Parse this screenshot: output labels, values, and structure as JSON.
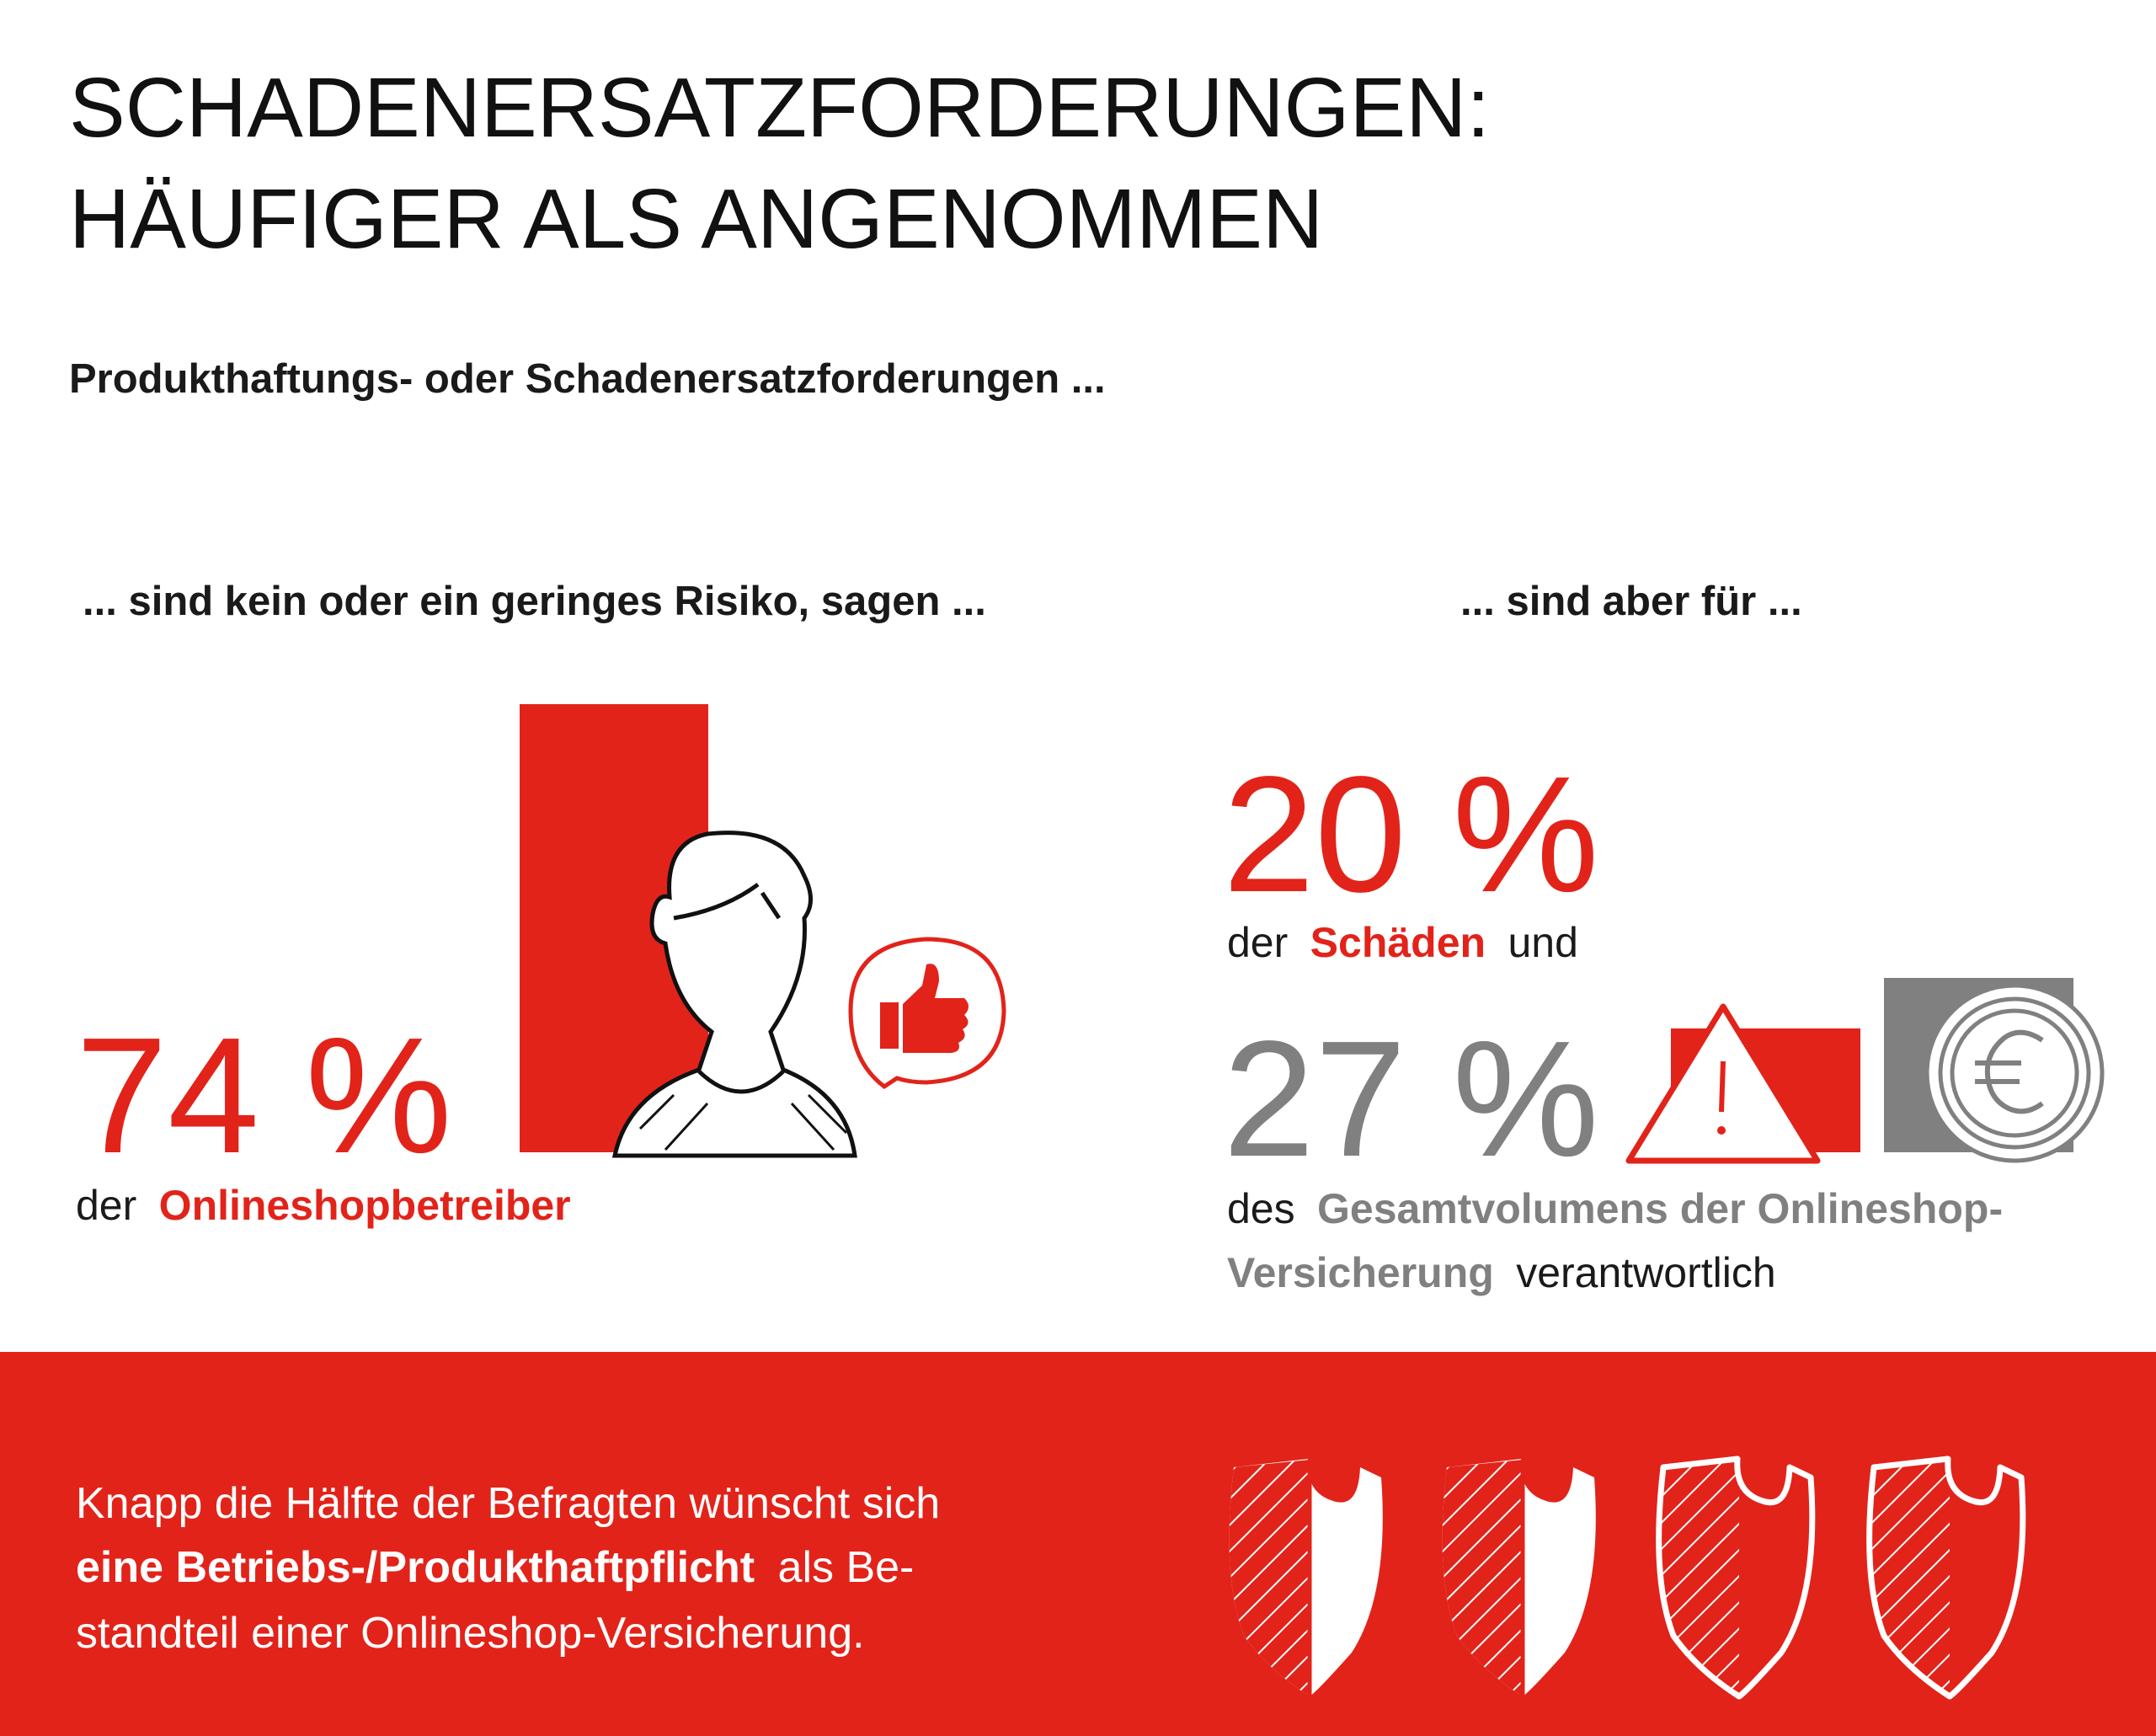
{
  "header": {
    "title_lines": [
      "SCHADENERSATZFORDERUNGEN:",
      "HÄUFIGER ALS ANGENOMMEN"
    ],
    "subtitle": "Produkthaftungs- oder Schadenersatzforderungen ..."
  },
  "left": {
    "heading": "... sind kein oder ein geringes Risiko, sagen ...",
    "stat": "74 %",
    "caption": [
      "der",
      "Onlineshopbetreiber"
    ]
  },
  "right": {
    "heading": "... sind aber für ...",
    "stat_1": "20 %",
    "caption_1": [
      "der",
      "Schäden",
      "und"
    ],
    "stat_2": "27 %",
    "caption_2": [
      [
        "des",
        "Gesamtvolumens der Onlineshop-"
      ],
      [
        "Versicherung",
        "verantwortlich"
      ]
    ]
  },
  "footer": {
    "lines": [
      [
        "Knapp die Hälfte der Befragten wünscht sich"
      ],
      [
        "eine Betriebs-/Produkthaftpflicht",
        "als Be-"
      ],
      [
        "standteil einer Onlineshop-Versicherung."
      ]
    ]
  }
}
